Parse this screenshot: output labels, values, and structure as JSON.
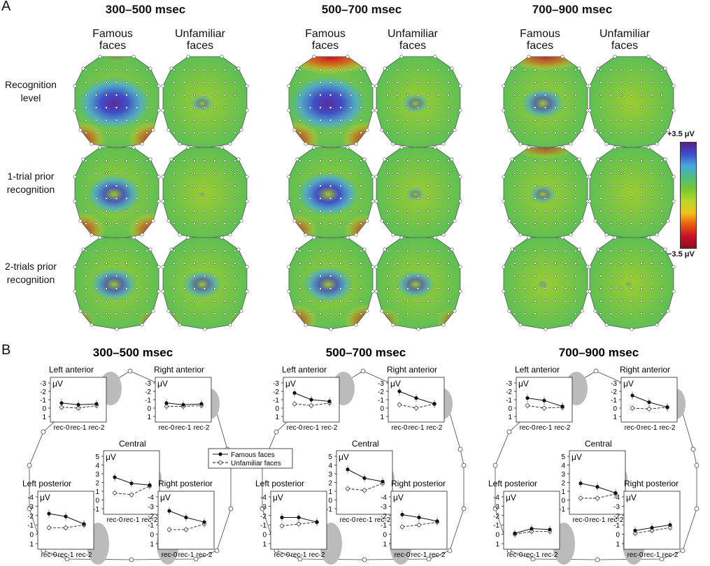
{
  "panel_a": {
    "letter": "A",
    "windows": [
      "300–500 msec",
      "500–700 msec",
      "700–900 msec"
    ],
    "columns": [
      {
        "line1": "Famous",
        "line2": "faces"
      },
      {
        "line1": "Unfamiliar",
        "line2": "faces"
      }
    ],
    "rows": [
      {
        "line1": "Recognition",
        "line2": "level"
      },
      {
        "line1": "1-trial prior",
        "line2": "recognition"
      },
      {
        "line1": "2-trials prior",
        "line2": "recognition"
      }
    ],
    "colorbar": {
      "max_label": "+3.5 μV",
      "min_label": "−3.5 μV",
      "colors": [
        "#5a1e8c",
        "#3f4fc8",
        "#48a8e0",
        "#4cc07a",
        "#7cc633",
        "#b8d82a",
        "#f0c21a",
        "#e85a10",
        "#c8102a",
        "#8a0f1a"
      ]
    },
    "maps": [
      [
        {
          "blue": 0.95,
          "red": 0.8,
          "top": 0.2
        },
        {
          "blue": 0.3,
          "red": 0,
          "top": 0
        },
        {
          "blue": 1.0,
          "red": 0.8,
          "top": 1.0
        },
        {
          "blue": 0.35,
          "red": 0,
          "top": 0
        },
        {
          "blue": 0.55,
          "red": 0.1,
          "top": 0.8
        },
        {
          "blue": 0,
          "red": 0,
          "top": 0
        }
      ],
      [
        {
          "blue": 0.7,
          "red": 0.8,
          "top": 0.1
        },
        {
          "blue": 0.1,
          "red": 0,
          "top": 0
        },
        {
          "blue": 0.8,
          "red": 0.7,
          "top": 0.1
        },
        {
          "blue": 0.25,
          "red": 0.1,
          "top": 0
        },
        {
          "blue": 0.35,
          "red": 0,
          "top": 0.6
        },
        {
          "blue": 0,
          "red": 0,
          "top": 0
        }
      ],
      [
        {
          "blue": 0.6,
          "red": 0.4,
          "top": 0.1
        },
        {
          "blue": 0.5,
          "red": 0.3,
          "top": 0
        },
        {
          "blue": 0.65,
          "red": 0.7,
          "top": 0.1
        },
        {
          "blue": 0.5,
          "red": 0.5,
          "top": 0
        },
        {
          "blue": 0.15,
          "red": 0,
          "top": 0
        },
        {
          "blue": 0.1,
          "red": 0,
          "top": 0
        }
      ]
    ]
  },
  "panel_b": {
    "letter": "B",
    "windows": [
      "300–500 msec",
      "500–700 msec",
      "700–900 msec"
    ],
    "unit": "μV",
    "legend": {
      "famous": "Famous faces",
      "unfamiliar": "Unfamiliar faces"
    },
    "chart_data": {
      "type": "line",
      "x": [
        "rec-0",
        "rec-1",
        "rec-2"
      ],
      "anterior_ylim": [
        1,
        -3
      ],
      "anterior_ticks": [
        "-3",
        "-2",
        "-1",
        "0",
        "1"
      ],
      "posterior_ylim": [
        1,
        -4
      ],
      "posterior_ticks": [
        "-4",
        "-3",
        "-2",
        "-1",
        "0",
        "1"
      ],
      "central_ylim": [
        -1,
        5
      ],
      "central_ticks": [
        "5",
        "4",
        "3",
        "2",
        "1",
        "0",
        "-1"
      ],
      "panels": [
        {
          "window": "300–500 msec",
          "regions": [
            {
              "name": "Left anterior",
              "famous": [
                -0.6,
                -0.4,
                -0.5
              ],
              "unfamiliar": [
                -0.1,
                0.0,
                -0.3
              ]
            },
            {
              "name": "Right anterior",
              "famous": [
                -0.6,
                -0.4,
                -0.5
              ],
              "unfamiliar": [
                -0.2,
                -0.2,
                -0.3
              ]
            },
            {
              "name": "Central",
              "famous": [
                2.6,
                1.9,
                1.7
              ],
              "unfamiliar": [
                0.8,
                0.6,
                1.6
              ]
            },
            {
              "name": "Left posterior",
              "famous": [
                -2.2,
                -1.9,
                -1.1
              ],
              "unfamiliar": [
                -0.7,
                -0.7,
                -1.0
              ]
            },
            {
              "name": "Right posterior",
              "famous": [
                -2.5,
                -1.8,
                -1.3
              ],
              "unfamiliar": [
                -0.5,
                -0.5,
                -1.1
              ]
            }
          ]
        },
        {
          "window": "500–700 msec",
          "regions": [
            {
              "name": "Left anterior",
              "famous": [
                -1.8,
                -1.0,
                -0.8
              ],
              "unfamiliar": [
                -0.5,
                -0.3,
                -0.6
              ]
            },
            {
              "name": "Right anterior",
              "famous": [
                -2.0,
                -1.2,
                -0.5
              ],
              "unfamiliar": [
                -0.4,
                0.0,
                -0.5
              ]
            },
            {
              "name": "Central",
              "famous": [
                3.5,
                2.5,
                2.1
              ],
              "unfamiliar": [
                1.3,
                1.1,
                1.9
              ]
            },
            {
              "name": "Left posterior",
              "famous": [
                -1.8,
                -1.8,
                -1.3
              ],
              "unfamiliar": [
                -0.9,
                -1.1,
                -1.3
              ]
            },
            {
              "name": "Right posterior",
              "famous": [
                -2.1,
                -1.8,
                -1.4
              ],
              "unfamiliar": [
                -0.8,
                -1.0,
                -1.3
              ]
            }
          ]
        },
        {
          "window": "700–900 msec",
          "regions": [
            {
              "name": "Left anterior",
              "famous": [
                -1.2,
                -0.9,
                -0.2
              ],
              "unfamiliar": [
                -0.3,
                0.0,
                -0.1
              ]
            },
            {
              "name": "Right anterior",
              "famous": [
                -1.5,
                -0.7,
                -0.1
              ],
              "unfamiliar": [
                0.0,
                0.1,
                -0.1
              ]
            },
            {
              "name": "Central",
              "famous": [
                1.9,
                1.5,
                0.8
              ],
              "unfamiliar": [
                0.2,
                0.2,
                0.7
              ]
            },
            {
              "name": "Left posterior",
              "famous": [
                -0.1,
                -0.6,
                -0.5
              ],
              "unfamiliar": [
                0.0,
                -0.3,
                -0.3
              ]
            },
            {
              "name": "Right posterior",
              "famous": [
                -0.4,
                -0.7,
                -1.0
              ],
              "unfamiliar": [
                -0.1,
                -0.4,
                -0.7
              ]
            }
          ]
        }
      ]
    }
  }
}
